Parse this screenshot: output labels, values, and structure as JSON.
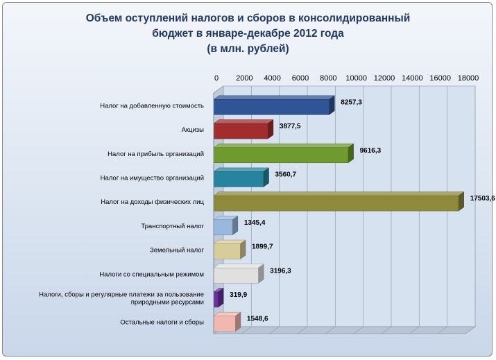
{
  "chart_data": {
    "type": "bar",
    "orientation": "horizontal",
    "title_lines": [
      "Объем оступлений налогов и сборов в консолидированный",
      "бюджет в январе-декабре 2012 года",
      "(в млн. рублей)"
    ],
    "axis_position": "top",
    "xlim": [
      0,
      18000
    ],
    "ticks": [
      0,
      2000,
      4000,
      6000,
      8000,
      10000,
      12000,
      14000,
      16000,
      18000
    ],
    "tick_labels": [
      "0",
      "2000",
      "4000",
      "6000",
      "8000",
      "10000",
      "12000",
      "14000",
      "16000",
      "18000"
    ],
    "grid": true,
    "legend": "none",
    "categories": [
      {
        "lines": [
          "Налог на добавленную  стоимость"
        ],
        "value": 8257.3,
        "label": "8257,3",
        "color": "#2f5597"
      },
      {
        "lines": [
          "Акцизы"
        ],
        "value": 3877.5,
        "label": "3877,5",
        "color": "#a12d2d"
      },
      {
        "lines": [
          "Налог на прибыль организаций"
        ],
        "value": 9616.3,
        "label": "9616,3",
        "color": "#6f9a2d"
      },
      {
        "lines": [
          "Налог на имущество организаций"
        ],
        "value": 3560.7,
        "label": "3560,7",
        "color": "#26849e"
      },
      {
        "lines": [
          "Налог на доходы физических лиц"
        ],
        "value": 17503.6,
        "label": "17503,6",
        "color": "#8f8a3a"
      },
      {
        "lines": [
          "Транспортный налог"
        ],
        "value": 1345.4,
        "label": "1345,4",
        "color": "#9ab8dd"
      },
      {
        "lines": [
          "Земельный налог"
        ],
        "value": 1899.7,
        "label": "1899,7",
        "color": "#d8cc9a"
      },
      {
        "lines": [
          "Налоги со специальным режимом"
        ],
        "value": 3196.3,
        "label": "3196,3",
        "color": "#e0e0e0"
      },
      {
        "lines": [
          "Налоги, сборы и регулярные платежи за пользование",
          "природными ресурсами"
        ],
        "value": 319.9,
        "label": "319,9",
        "color": "#6a2fa0"
      },
      {
        "lines": [
          "Остальные налоги и сборы"
        ],
        "value": 1548.6,
        "label": "1548,6",
        "color": "#f2b8b0"
      }
    ]
  }
}
